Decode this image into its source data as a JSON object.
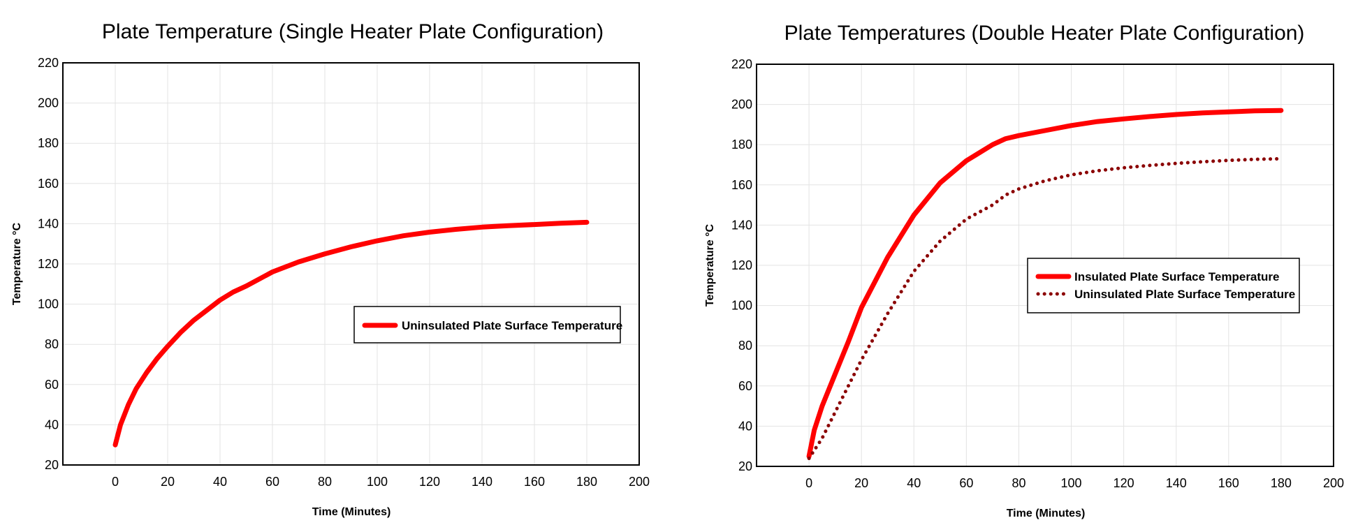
{
  "chart_data": [
    {
      "type": "line",
      "title": "Plate Temperature (Single Heater Plate Configuration)",
      "xlabel": "Time (Minutes)",
      "ylabel": "Temperature °C",
      "xlim": [
        -20,
        200
      ],
      "ylim": [
        20,
        220
      ],
      "xticks": [
        0,
        20,
        40,
        60,
        80,
        100,
        120,
        140,
        160,
        180,
        200
      ],
      "yticks": [
        20,
        40,
        60,
        80,
        100,
        120,
        140,
        160,
        180,
        200,
        220
      ],
      "grid": true,
      "legend_position": "center-right",
      "series": [
        {
          "name": "Uninsulated Plate Surface Temperature",
          "style": "solid",
          "color": "#ff0000",
          "x": [
            0,
            2,
            5,
            8,
            12,
            16,
            20,
            25,
            30,
            35,
            40,
            45,
            50,
            60,
            70,
            80,
            90,
            100,
            110,
            120,
            130,
            140,
            150,
            160,
            170,
            180
          ],
          "y": [
            30,
            40,
            50,
            58,
            66,
            73,
            79,
            86,
            92,
            97,
            102,
            106,
            109,
            116,
            121,
            125,
            128.5,
            131.5,
            134,
            135.8,
            137.2,
            138.3,
            139,
            139.6,
            140.2,
            140.7
          ]
        }
      ]
    },
    {
      "type": "line",
      "title": "Plate Temperatures (Double Heater Plate Configuration)",
      "xlabel": "Time (Minutes)",
      "ylabel": "Temperature °C",
      "xlim": [
        -20,
        200
      ],
      "ylim": [
        20,
        220
      ],
      "xticks": [
        0,
        20,
        40,
        60,
        80,
        100,
        120,
        140,
        160,
        180,
        200
      ],
      "yticks": [
        20,
        40,
        60,
        80,
        100,
        120,
        140,
        160,
        180,
        200,
        220
      ],
      "grid": true,
      "legend_position": "center-right",
      "series": [
        {
          "name": "Insulated Plate Surface Temperature",
          "style": "solid",
          "color": "#ff0000",
          "x": [
            0,
            2,
            5,
            10,
            15,
            20,
            30,
            40,
            50,
            60,
            70,
            75,
            80,
            90,
            100,
            110,
            120,
            130,
            140,
            150,
            160,
            170,
            180
          ],
          "y": [
            25,
            38,
            50,
            66,
            82,
            99,
            124,
            145,
            161,
            172,
            180,
            183,
            184.5,
            187,
            189.5,
            191.5,
            192.8,
            194,
            195,
            195.8,
            196.3,
            196.8,
            197
          ]
        },
        {
          "name": "Uninsulated Plate Surface Temperature",
          "style": "dotted",
          "color": "#8b0000",
          "x": [
            0,
            5,
            10,
            15,
            20,
            30,
            40,
            50,
            60,
            70,
            75,
            80,
            90,
            100,
            110,
            120,
            130,
            140,
            150,
            160,
            170,
            180
          ],
          "y": [
            24,
            34,
            47,
            60,
            73,
            96,
            117,
            132,
            143,
            150,
            155,
            158,
            162,
            165,
            167,
            168.5,
            169.7,
            170.7,
            171.5,
            172.2,
            172.7,
            173
          ]
        }
      ]
    }
  ]
}
